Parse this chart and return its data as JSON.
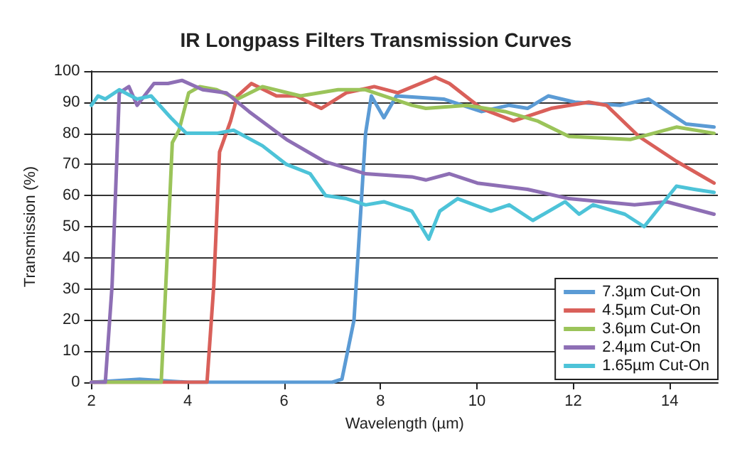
{
  "chart_data": {
    "type": "line",
    "title": "IR Longpass Filters Transmission Curves",
    "xlabel": "Wavelength (µm)",
    "ylabel": "Transmission (%)",
    "xlim": [
      2,
      15
    ],
    "xticks": [
      2,
      4,
      6,
      8,
      10,
      12,
      14
    ],
    "ylim": [
      0,
      100
    ],
    "yticks": [
      0,
      10,
      20,
      30,
      40,
      50,
      60,
      70,
      80,
      90,
      100
    ],
    "grid": "y",
    "legend": "bottom right",
    "marker": "none",
    "line_style": "solid",
    "series": [
      {
        "name": "7.3µm Cut-On",
        "color": "#5b9bd5",
        "x": [
          2,
          3,
          4,
          5,
          6,
          7,
          7.2,
          7.45,
          7.69,
          7.81,
          8.07,
          8.33,
          9.31,
          10.09,
          10.67,
          11.05,
          11.48,
          12.03,
          12.98,
          13.56,
          14.34,
          14.92
        ],
        "values": [
          0,
          1,
          0,
          0,
          0,
          0,
          1,
          20,
          80,
          92,
          85,
          92,
          91,
          87,
          89,
          88,
          92,
          90,
          89,
          91,
          83,
          82
        ]
      },
      {
        "name": "4.5µm Cut-On",
        "color": "#d9605a",
        "x": [
          2,
          3,
          4,
          4.4,
          4.54,
          4.66,
          4.89,
          5.03,
          5.32,
          5.84,
          6.25,
          6.77,
          7.29,
          7.87,
          8.36,
          9.14,
          9.43,
          10.09,
          10.76,
          11.54,
          12.32,
          12.69,
          13.36,
          14.14,
          14.92
        ],
        "values": [
          0,
          0,
          0,
          0,
          31,
          74,
          84,
          92,
          96,
          92,
          92,
          88,
          93,
          95,
          93,
          98,
          96,
          88,
          84,
          88,
          90,
          89,
          79,
          71,
          64
        ]
      },
      {
        "name": "3.6µm Cut-On",
        "color": "#9bc45a",
        "x": [
          2,
          3,
          3.45,
          3.59,
          3.68,
          3.82,
          4.02,
          4.25,
          4.6,
          5.03,
          5.55,
          6.34,
          7.12,
          7.69,
          8.65,
          8.94,
          9.8,
          10.58,
          11.25,
          11.91,
          13.18,
          14.14,
          14.92
        ],
        "values": [
          0,
          0,
          0,
          46,
          77,
          81,
          93,
          95,
          94,
          91,
          95,
          92,
          94,
          94,
          89,
          88,
          89,
          87,
          84,
          79,
          78,
          82,
          80
        ]
      },
      {
        "name": "2.4µm Cut-On",
        "color": "#8e6fb5",
        "x": [
          2,
          2.29,
          2.43,
          2.58,
          2.78,
          2.95,
          3.3,
          3.59,
          3.88,
          4.31,
          4.8,
          5.27,
          6.05,
          6.83,
          7.69,
          8.65,
          8.94,
          9.43,
          10.01,
          11.05,
          11.91,
          13.27,
          13.94,
          14.92
        ],
        "values": [
          0,
          0,
          31,
          93,
          95,
          89,
          96,
          96,
          97,
          94,
          93,
          87,
          78,
          71,
          67,
          66,
          65,
          67,
          64,
          62,
          59,
          57,
          58,
          54
        ]
      },
      {
        "name": "1.65µm Cut-On",
        "color": "#4dc3d8",
        "x": [
          2,
          2.14,
          2.29,
          2.58,
          2.95,
          3.24,
          3.65,
          3.97,
          4.6,
          4.95,
          5.55,
          6.05,
          6.54,
          6.86,
          7.29,
          7.69,
          8.07,
          8.65,
          8.73,
          9,
          9.23,
          9.6,
          10.29,
          10.67,
          11.16,
          11.83,
          12.12,
          12.41,
          13.07,
          13.47,
          14.14,
          14.51,
          14.92
        ],
        "values": [
          89,
          92,
          91,
          94,
          91,
          92,
          85,
          80,
          80,
          81,
          76,
          70,
          67,
          60,
          59,
          57,
          58,
          55,
          53,
          46,
          55,
          59,
          55,
          57,
          52,
          58,
          54,
          57,
          54,
          50,
          63,
          62,
          61
        ]
      }
    ]
  }
}
